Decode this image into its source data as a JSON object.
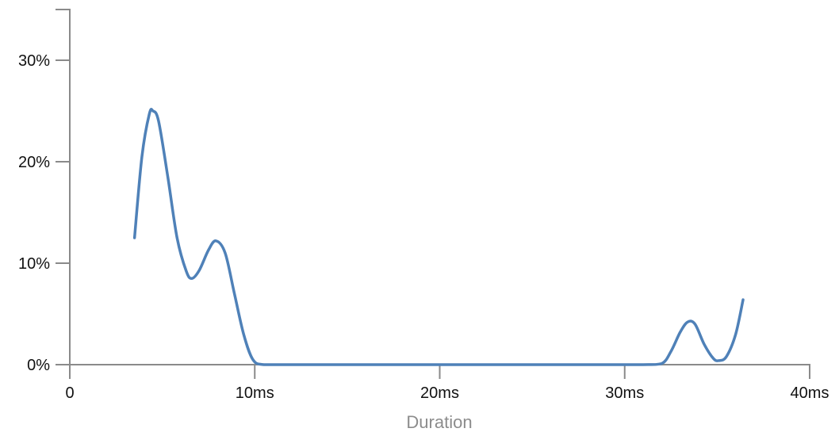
{
  "chart_data": {
    "type": "line",
    "title": "",
    "xlabel": "Duration",
    "ylabel": "",
    "xlim": [
      0,
      40
    ],
    "ylim": [
      0,
      0.3
    ],
    "y_axis_top": 0.35,
    "x_ticks": [
      {
        "value": 0,
        "label": "0"
      },
      {
        "value": 10,
        "label": "10ms"
      },
      {
        "value": 20,
        "label": "20ms"
      },
      {
        "value": 30,
        "label": "30ms"
      },
      {
        "value": 40,
        "label": "40ms"
      }
    ],
    "y_ticks": [
      {
        "value": 0,
        "label": "0%"
      },
      {
        "value": 0.1,
        "label": "10%"
      },
      {
        "value": 0.2,
        "label": "20%"
      },
      {
        "value": 0.3,
        "label": "30%"
      }
    ],
    "grid": false,
    "legend": "none",
    "colors": {
      "line": "#4f81b8",
      "axis": "#8a8a8a",
      "axis_title": "#8c8c8c",
      "tick_label": "#111111"
    },
    "series": [
      {
        "x": [
          3.5,
          3.9,
          4.3,
          4.5,
          4.8,
          5.3,
          5.8,
          6.3,
          6.6,
          7.0,
          7.5,
          7.9,
          8.4,
          8.9,
          9.4,
          9.9,
          10.5,
          12.0,
          16.0,
          20.0,
          24.0,
          28.0,
          31.0,
          32.0,
          32.5,
          33.0,
          33.4,
          33.8,
          34.3,
          34.8,
          35.1,
          35.5,
          36.0,
          36.4
        ],
        "y": [
          0.125,
          0.205,
          0.247,
          0.25,
          0.24,
          0.185,
          0.125,
          0.092,
          0.085,
          0.093,
          0.113,
          0.122,
          0.11,
          0.07,
          0.03,
          0.005,
          0.0,
          0.0,
          0.0,
          0.0,
          0.0,
          0.0,
          0.0,
          0.001,
          0.013,
          0.032,
          0.042,
          0.04,
          0.02,
          0.006,
          0.004,
          0.008,
          0.03,
          0.064
        ]
      }
    ]
  }
}
